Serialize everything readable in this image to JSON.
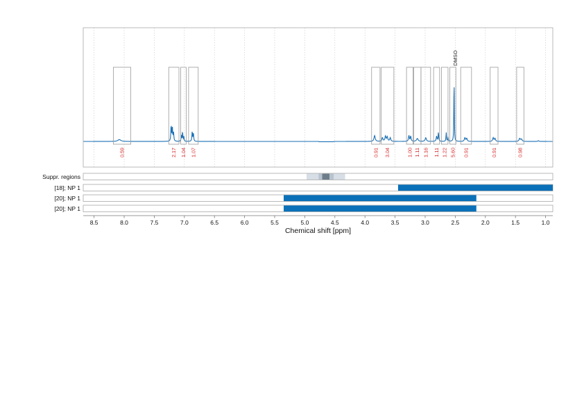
{
  "chart_data": {
    "type": "line",
    "title": "",
    "xlabel": "Chemical shift [ppm]",
    "xlim": [
      8.68,
      0.88
    ],
    "x_ticks": [
      "8.5",
      "8.0",
      "7.5",
      "7.0",
      "6.5",
      "6.0",
      "5.5",
      "5.0",
      "4.5",
      "4.0",
      "3.5",
      "3.0",
      "2.5",
      "2.0",
      "1.5",
      "1.0"
    ],
    "x_tick_values": [
      8.5,
      8.0,
      7.5,
      7.0,
      6.5,
      6.0,
      5.5,
      5.0,
      4.5,
      4.0,
      3.5,
      3.0,
      2.5,
      2.0,
      1.5,
      1.0
    ],
    "grid": true,
    "colors": {
      "spectrum": "#1a6fb5",
      "bar": "#0a70b8",
      "integral_label": "#d62728",
      "box": "#9a9a9a",
      "suppr_light": "#d7dee5",
      "suppr_mid": "#b7c3cf",
      "suppr_dark": "#6e7d8a"
    },
    "annotation": {
      "label": "DMSO",
      "x": 2.5
    },
    "spectrum_peaks": [
      {
        "x": 8.08,
        "h": 0.025,
        "w": 0.03
      },
      {
        "x": 7.22,
        "h": 0.21,
        "w": 0.006
      },
      {
        "x": 7.2,
        "h": 0.19,
        "w": 0.006
      },
      {
        "x": 7.18,
        "h": 0.12,
        "w": 0.006
      },
      {
        "x": 7.05,
        "h": 0.09,
        "w": 0.005
      },
      {
        "x": 7.03,
        "h": 0.13,
        "w": 0.005
      },
      {
        "x": 7.01,
        "h": 0.07,
        "w": 0.005
      },
      {
        "x": 6.87,
        "h": 0.13,
        "w": 0.006
      },
      {
        "x": 6.85,
        "h": 0.11,
        "w": 0.006
      },
      {
        "x": 3.84,
        "h": 0.08,
        "w": 0.012
      },
      {
        "x": 3.71,
        "h": 0.05,
        "w": 0.01
      },
      {
        "x": 3.66,
        "h": 0.07,
        "w": 0.01
      },
      {
        "x": 3.63,
        "h": 0.06,
        "w": 0.01
      },
      {
        "x": 3.58,
        "h": 0.05,
        "w": 0.01
      },
      {
        "x": 3.27,
        "h": 0.08,
        "w": 0.008
      },
      {
        "x": 3.24,
        "h": 0.07,
        "w": 0.008
      },
      {
        "x": 3.13,
        "h": 0.04,
        "w": 0.015
      },
      {
        "x": 2.99,
        "h": 0.05,
        "w": 0.012
      },
      {
        "x": 2.81,
        "h": 0.07,
        "w": 0.008
      },
      {
        "x": 2.78,
        "h": 0.12,
        "w": 0.006
      },
      {
        "x": 2.65,
        "h": 0.12,
        "w": 0.005
      },
      {
        "x": 2.62,
        "h": 0.06,
        "w": 0.005
      },
      {
        "x": 2.52,
        "h": 0.92,
        "w": 0.004
      },
      {
        "x": 2.34,
        "h": 0.05,
        "w": 0.01
      },
      {
        "x": 2.31,
        "h": 0.04,
        "w": 0.01
      },
      {
        "x": 1.87,
        "h": 0.05,
        "w": 0.01
      },
      {
        "x": 1.84,
        "h": 0.04,
        "w": 0.01
      },
      {
        "x": 1.43,
        "h": 0.04,
        "w": 0.012
      },
      {
        "x": 1.4,
        "h": 0.03,
        "w": 0.012
      },
      {
        "x": 1.12,
        "h": 0.01,
        "w": 0.01
      }
    ],
    "integrals": [
      {
        "from": 8.18,
        "to": 7.89,
        "value": "0.59"
      },
      {
        "from": 7.26,
        "to": 7.09,
        "value": "2.17"
      },
      {
        "from": 7.06,
        "to": 6.97,
        "value": "1.04"
      },
      {
        "from": 6.93,
        "to": 6.77,
        "value": "1.07"
      },
      {
        "from": 3.89,
        "to": 3.75,
        "value": "0.91"
      },
      {
        "from": 3.73,
        "to": 3.52,
        "value": "3.04"
      },
      {
        "from": 3.31,
        "to": 3.2,
        "value": "1.00"
      },
      {
        "from": 3.19,
        "to": 3.07,
        "value": "1.11"
      },
      {
        "from": 3.07,
        "to": 2.91,
        "value": "1.16"
      },
      {
        "from": 2.86,
        "to": 2.76,
        "value": "1.11"
      },
      {
        "from": 2.73,
        "to": 2.62,
        "value": "1.22"
      },
      {
        "from": 2.59,
        "to": 2.49,
        "value": "5.60"
      },
      {
        "from": 2.41,
        "to": 2.23,
        "value": "0.91"
      },
      {
        "from": 1.92,
        "to": 1.79,
        "value": "0.91"
      },
      {
        "from": 1.48,
        "to": 1.36,
        "value": "0.98"
      }
    ],
    "suppressed_region": {
      "label": "Suppr. regions",
      "outer": [
        4.97,
        4.33
      ],
      "inner": [
        4.77,
        4.52
      ],
      "core": [
        4.71,
        4.59
      ]
    },
    "range_bars": [
      {
        "label": "[18]; NP 1",
        "from": 3.45,
        "to": 0.88
      },
      {
        "label": "[20]; NP 1",
        "from": 5.35,
        "to": 2.15
      },
      {
        "label": "[20]; NP 1",
        "from": 5.35,
        "to": 2.15
      }
    ]
  }
}
